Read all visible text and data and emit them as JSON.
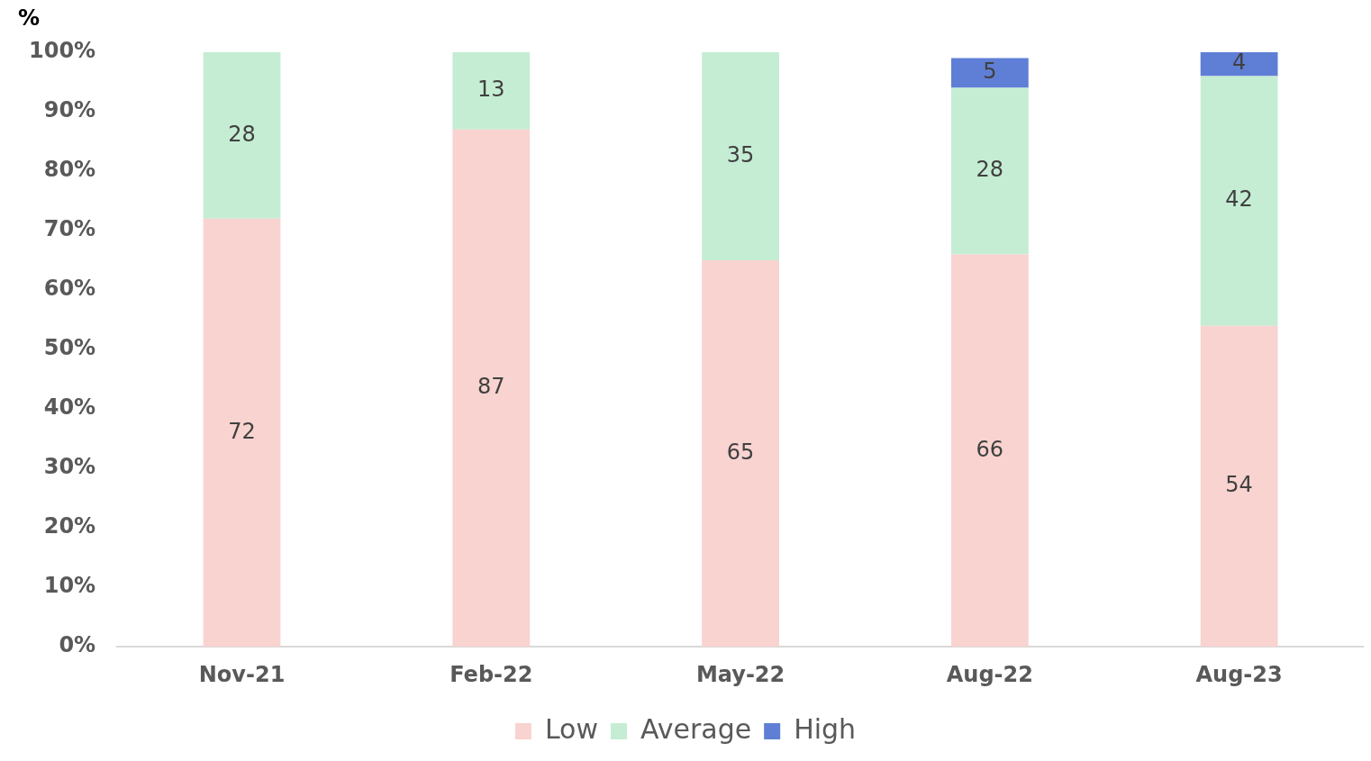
{
  "chart_data": {
    "type": "bar",
    "stacked": true,
    "ylabel": "%",
    "categories": [
      "Nov-21",
      "Feb-22",
      "May-22",
      "Aug-22",
      "Aug-23"
    ],
    "series": [
      {
        "name": "Low",
        "color": "#f8d3d0",
        "values": [
          72,
          87,
          65,
          66,
          54
        ]
      },
      {
        "name": "Average",
        "color": "#c5edd3",
        "values": [
          28,
          13,
          35,
          28,
          42
        ]
      },
      {
        "name": "High",
        "color": "#5f7fd6",
        "values": [
          null,
          null,
          null,
          5,
          4
        ]
      }
    ],
    "ylim": [
      0,
      100
    ],
    "yticks": [
      {
        "value": 0,
        "label": "0%"
      },
      {
        "value": 10,
        "label": "10%"
      },
      {
        "value": 20,
        "label": "20%"
      },
      {
        "value": 30,
        "label": "30%"
      },
      {
        "value": 40,
        "label": "40%"
      },
      {
        "value": 50,
        "label": "50%"
      },
      {
        "value": 60,
        "label": "60%"
      },
      {
        "value": 70,
        "label": "70%"
      },
      {
        "value": 80,
        "label": "80%"
      },
      {
        "value": 90,
        "label": "90%"
      },
      {
        "value": 100,
        "label": "100%"
      }
    ],
    "grid": false,
    "legend": "bottom",
    "data_labels": true
  }
}
